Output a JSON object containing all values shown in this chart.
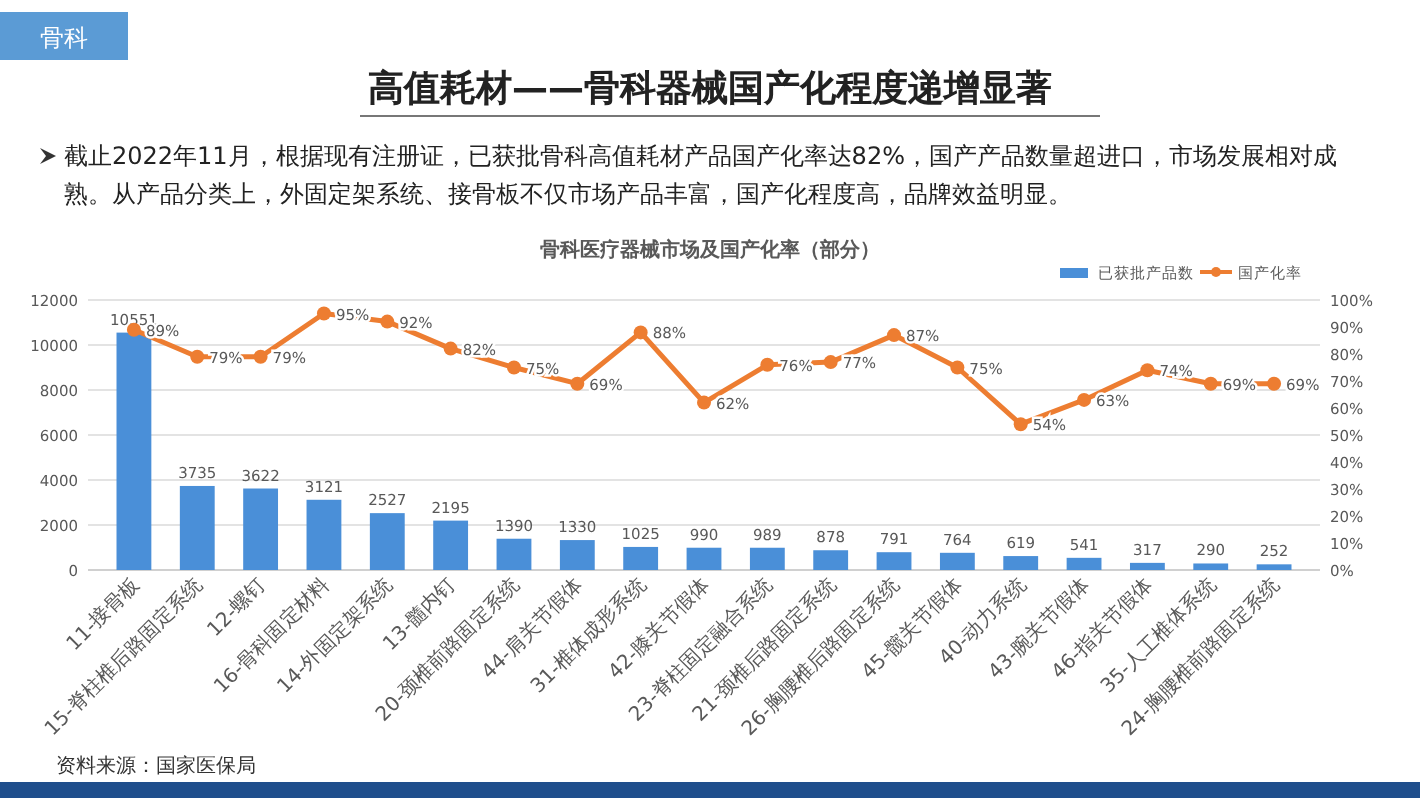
{
  "chart_data": {
    "type": "bar",
    "title": "高值耗材——骨科器械国产化程度递增显著",
    "subtitle": "截止2022年11月，根据现有注册证，已获批骨科高值耗材产品国产化率达82%，国产产品数量超进口，市场发展相对成熟。从产品分类上，外固定架系统、接骨板不仅市场产品丰富，国产化程度高，品牌效益明显。",
    "annotations": [
      "骨科",
      "骨科医疗器械市场及国产化率（部分）",
      "资料来源：国家医保局"
    ],
    "categories": [
      "11-接骨板",
      "15-脊柱椎后路固定系统",
      "12-螺钉",
      "16-骨科固定材料",
      "14-外固定架系统",
      "13-髓内钉",
      "20-颈椎前路固定系统",
      "44-肩关节假体",
      "31-椎体成形系统",
      "42-膝关节假体",
      "23-脊柱固定融合系统",
      "21-颈椎后路固定系统",
      "26-胸腰椎后路固定系统",
      "45-髋关节假体",
      "40-动力系统",
      "43-腕关节假体",
      "46-指关节假体",
      "35-人工椎体系统",
      "24-胸腰椎前路固定系统"
    ],
    "series": [
      {
        "name": "已获批产品数",
        "color": "#4a8fd8",
        "values": [
          10551,
          3735,
          3622,
          3121,
          2527,
          2195,
          1390,
          1330,
          1025,
          990,
          989,
          878,
          791,
          764,
          619,
          541,
          317,
          290,
          252
        ],
        "value_labels": [
          "10551",
          "3735",
          "3622",
          "3121",
          "2527",
          "2195",
          "1390",
          "1330",
          "1025",
          "990",
          "989",
          "878",
          "791",
          "764",
          "619",
          "541",
          "317",
          "290",
          "252"
        ]
      },
      {
        "name": "国产化率",
        "type": "line",
        "axis": "y2",
        "color": "#ed7d31",
        "marker": "circle",
        "values": [
          89,
          79,
          79,
          95,
          92,
          82,
          75,
          69,
          88,
          62,
          76,
          77,
          87,
          75,
          54,
          63,
          74,
          69,
          69
        ],
        "value_labels": [
          "89%",
          "79%",
          "79%",
          "95%",
          "92%",
          "82%",
          "75%",
          "69%",
          "88%",
          "62%",
          "76%",
          "77%",
          "87%",
          "75%",
          "54%",
          "63%",
          "74%",
          "69%",
          "69%"
        ]
      }
    ],
    "ylim": [
      0,
      12000
    ],
    "yticks": [
      0,
      2000,
      4000,
      6000,
      8000,
      10000,
      12000
    ],
    "y2lim": [
      0,
      100
    ],
    "y2ticks": [
      {
        "value": 0,
        "label": "0%"
      },
      {
        "value": 10,
        "label": "10%"
      },
      {
        "value": 20,
        "label": "20%"
      },
      {
        "value": 30,
        "label": "30%"
      },
      {
        "value": 40,
        "label": "40%"
      },
      {
        "value": 50,
        "label": "50%"
      },
      {
        "value": 60,
        "label": "60%"
      },
      {
        "value": 70,
        "label": "70%"
      },
      {
        "value": 80,
        "label": "80%"
      },
      {
        "value": 90,
        "label": "90%"
      },
      {
        "value": 100,
        "label": "100%"
      }
    ],
    "grid": "y",
    "legend": "top right"
  }
}
